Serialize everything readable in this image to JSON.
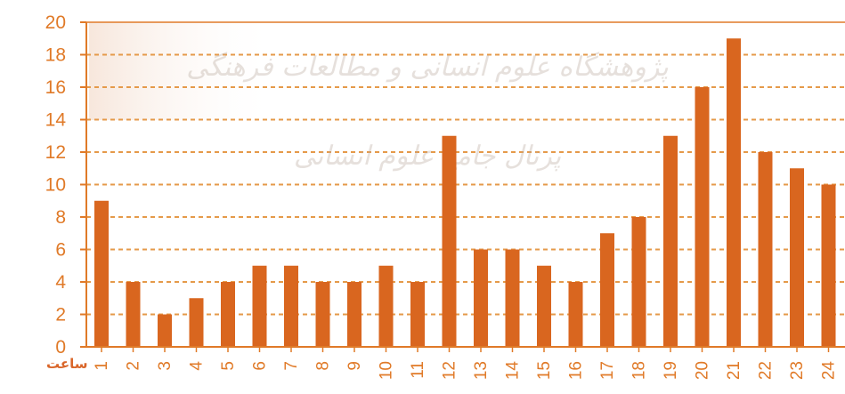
{
  "chart_data": {
    "type": "bar",
    "title": "",
    "xlabel": "ساعت",
    "ylabel": "",
    "ylim": [
      0,
      20
    ],
    "yticks": [
      0,
      2,
      4,
      6,
      8,
      10,
      12,
      14,
      16,
      18,
      20
    ],
    "grid": true,
    "categories": [
      "1",
      "2",
      "3",
      "4",
      "5",
      "6",
      "7",
      "8",
      "9",
      "10",
      "11",
      "12",
      "13",
      "14",
      "15",
      "16",
      "17",
      "18",
      "19",
      "20",
      "21",
      "22",
      "23",
      "24"
    ],
    "values": [
      9,
      4,
      2,
      3,
      4,
      5,
      5,
      4,
      4,
      5,
      4,
      13,
      6,
      6,
      5,
      4,
      7,
      8,
      13,
      16,
      19,
      12,
      11,
      10
    ]
  },
  "colors": {
    "bar": "#d9661f",
    "axis": "#e07a28",
    "grid": "#e59a4a",
    "text": "#e07a28"
  },
  "watermark": {
    "line1": "پژوهشگاه علوم انسانی و مطالعات فرهنگی",
    "line2": "پرتال جامع علوم انسانی"
  }
}
